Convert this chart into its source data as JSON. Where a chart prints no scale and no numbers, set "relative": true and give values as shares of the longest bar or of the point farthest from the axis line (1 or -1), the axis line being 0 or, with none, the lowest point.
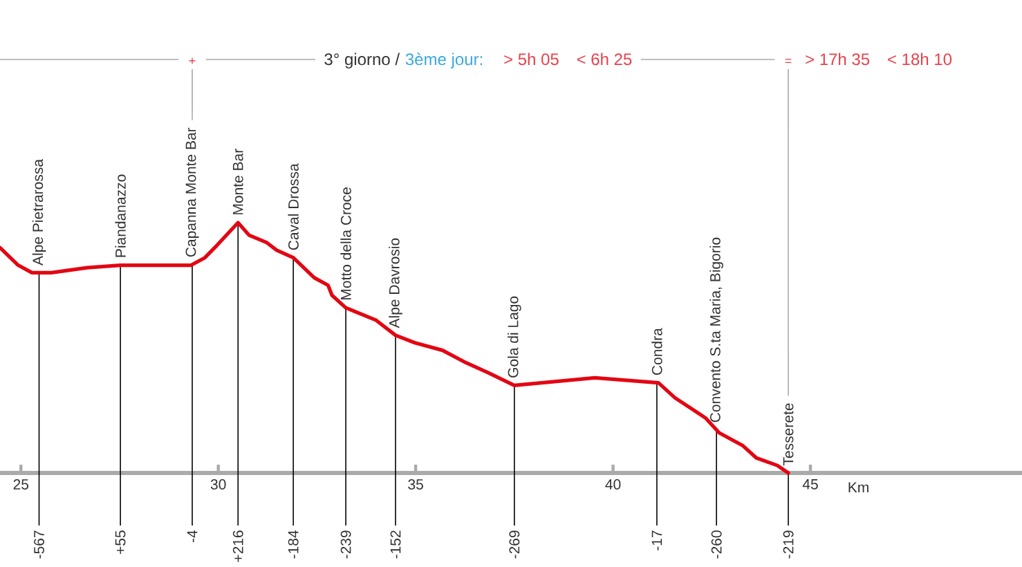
{
  "chart_data": {
    "type": "line",
    "title": "3° giorno /",
    "subtitle": "3ème jour:",
    "xlabel": "Km",
    "relative": true,
    "xlim": [
      24.47,
      50.36
    ],
    "xticks": [
      25,
      30,
      35,
      40,
      45
    ],
    "series": [
      {
        "color": "#e30613",
        "x": [
          24.47,
          24.93,
          25.28,
          25.77,
          26.68,
          27.52,
          27.98,
          28.43,
          29.31,
          29.66,
          29.97,
          30.5,
          30.78,
          31.23,
          31.48,
          31.9,
          32.43,
          32.78,
          32.88,
          33.23,
          33.69,
          34.0,
          34.49,
          34.98,
          35.68,
          36.28,
          36.84,
          37.5,
          39.54,
          41.15,
          41.57,
          42.34,
          42.69,
          43.28,
          43.63,
          44.16,
          44.44
        ],
        "values": [
          0.9,
          0.83,
          0.8,
          0.8,
          0.82,
          0.83,
          0.83,
          0.83,
          0.83,
          0.86,
          0.91,
          1.0,
          0.95,
          0.92,
          0.89,
          0.86,
          0.78,
          0.75,
          0.71,
          0.66,
          0.63,
          0.61,
          0.55,
          0.52,
          0.49,
          0.44,
          0.4,
          0.35,
          0.38,
          0.36,
          0.3,
          0.22,
          0.16,
          0.11,
          0.06,
          0.03,
          0
        ]
      }
    ],
    "ref_lines": [
      {
        "axis": "x",
        "value": 25.46,
        "label": "Alpe Pietrarossa"
      },
      {
        "axis": "x",
        "value": 27.52,
        "label": "Piandanazzo"
      },
      {
        "axis": "x",
        "value": 29.34,
        "label": "Capanna Monte Bar"
      },
      {
        "axis": "x",
        "value": 30.5,
        "label": "Monte Bar"
      },
      {
        "axis": "x",
        "value": 31.9,
        "label": "Caval Drossa"
      },
      {
        "axis": "x",
        "value": 33.23,
        "label": "Motto della Croce"
      },
      {
        "axis": "x",
        "value": 34.49,
        "label": "Alpe Davrosio"
      },
      {
        "axis": "x",
        "value": 37.5,
        "label": "Gola di Lago"
      },
      {
        "axis": "x",
        "value": 41.11,
        "label": "Condra"
      },
      {
        "axis": "x",
        "value": 42.62,
        "label": "Convento S.ta Maria, Bigorio"
      },
      {
        "axis": "x",
        "value": 44.44,
        "label": "Tesserete"
      }
    ],
    "annotations": [
      "-567",
      "+55",
      "-4",
      "+216",
      "-184",
      "-239",
      "-152",
      "-269",
      "-17",
      "-260",
      "-219",
      "+",
      "> 5h 05",
      "< 6h 25",
      "=",
      "> 17h 35",
      "< 18h 10"
    ]
  }
}
